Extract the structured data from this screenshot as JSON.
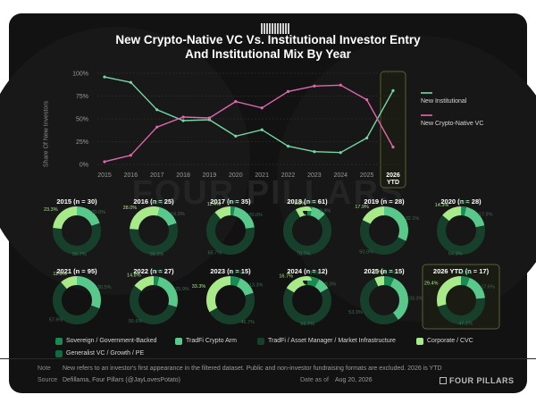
{
  "page": {
    "title_line1": "New Crypto-Native VC Vs. Institutional Investor Entry",
    "title_line2": "And Institutional Mix By Year",
    "watermark": "FOUR PILLARS",
    "brand": "FOUR PILLARS",
    "note_key": "Note",
    "note_text": "New refers to an investor's first appearance in the filtered dataset. Public and non-investor fundraising formats are excluded. 2026 is YTD",
    "source_key": "Source",
    "source_text": "Defillama, Four Pillars (@JayLovesPotato)",
    "date_key": "Date as of",
    "date_text": "Aug 20, 2026"
  },
  "colors": {
    "card_bg": "#121212",
    "institutional": "#74d7a4",
    "crypto_native": "#e066b0",
    "sovereign": "#1a8a52",
    "tradfi_crypto": "#58c98a",
    "tradfi_am": "#16402b",
    "corporate": "#a8ea8a",
    "generalist": "#0f6b40",
    "highlight_border": "#5b5f36"
  },
  "chart_data": [
    {
      "type": "line",
      "title": "New Crypto-Native VC Vs. Institutional Investor Entry And Institutional Mix By Year",
      "x": [
        "2015",
        "2016",
        "2017",
        "2018",
        "2019",
        "2020",
        "2021",
        "2022",
        "2023",
        "2024",
        "2025",
        "2026 YTD"
      ],
      "x_tick_lines": [
        [
          "2015"
        ],
        [
          "2016"
        ],
        [
          "2017"
        ],
        [
          "2018"
        ],
        [
          "2019"
        ],
        [
          "2020"
        ],
        [
          "2021"
        ],
        [
          "2022"
        ],
        [
          "2023"
        ],
        [
          "2024"
        ],
        [
          "2025"
        ],
        [
          "2026",
          "YTD"
        ]
      ],
      "ylabel": "Share Of New Investors",
      "yticks": [
        "0%",
        "25%",
        "50%",
        "75%",
        "100%"
      ],
      "ylim": [
        0,
        100
      ],
      "grid": true,
      "legend_position": "right",
      "series": [
        {
          "name": "New Institutional",
          "color": "#74d7a4",
          "values": [
            96,
            90,
            60,
            48,
            49,
            31,
            38,
            20,
            14,
            13,
            29,
            81
          ]
        },
        {
          "name": "New Crypto-Native VC",
          "color": "#e066b0",
          "values": [
            3,
            10,
            41,
            52,
            51,
            69,
            62,
            80,
            86,
            87,
            71,
            19
          ]
        }
      ],
      "highlight": "2026 YTD"
    },
    {
      "type": "pie",
      "subtype": "donut",
      "categories": [
        "Sovereign / Government-Backed",
        "TradFi Crypto Arm",
        "TradFi / Asset Manager / Market Infrastructure",
        "Corporate / CVC",
        "Generalist VC / Growth / PE"
      ],
      "legend_position": "bottom",
      "years": [
        {
          "label": "2015 (n = 30)",
          "slices": [
            0,
            20.0,
            56.7,
            23.3,
            0
          ],
          "labels": [
            "",
            "20.0%",
            "56.7%",
            "23.3%",
            ""
          ]
        },
        {
          "label": "2016 (n = 25)",
          "slices": [
            4.0,
            16.0,
            56.0,
            28.0,
            0
          ],
          "labels": [
            "4.0%",
            "16.0%",
            "56.0%",
            "28.0%",
            ""
          ]
        },
        {
          "label": "2017 (n = 35)",
          "slices": [
            2.9,
            20.0,
            65.7,
            11.4,
            0
          ],
          "labels": [
            "2.9%",
            "20.0%",
            "65.7%",
            "11.4%",
            ""
          ]
        },
        {
          "label": "2018 (n = 61)",
          "slices": [
            3.3,
            9.8,
            78.7,
            8.2,
            0
          ],
          "labels": [
            "3.3%",
            "9.8%",
            "78.7%",
            "8.2%",
            ""
          ]
        },
        {
          "label": "2019 (n = 28)",
          "slices": [
            0,
            32.1,
            50.0,
            17.9,
            0
          ],
          "labels": [
            "",
            "32.1%",
            "50.0%",
            "17.9%",
            ""
          ]
        },
        {
          "label": "2020 (n = 28)",
          "slices": [
            3.6,
            17.9,
            64.3,
            14.3,
            0
          ],
          "labels": [
            "3.6%",
            "17.9%",
            "64.3%",
            "14.3%",
            ""
          ]
        },
        {
          "label": "2021 (n = 95)",
          "slices": [
            0,
            30.5,
            57.9,
            11.6,
            0
          ],
          "labels": [
            "",
            "30.5%",
            "57.9%",
            "11.6%",
            ""
          ]
        },
        {
          "label": "2022 (n = 27)",
          "slices": [
            3.7,
            25.9,
            55.6,
            14.8,
            0
          ],
          "labels": [
            "3.7%",
            "25.9%",
            "55.6%",
            "14.8%",
            ""
          ]
        },
        {
          "label": "2023 (n = 15)",
          "slices": [
            6.7,
            13.3,
            46.7,
            33.3,
            0
          ],
          "labels": [
            "6.7%",
            "13.3%",
            "46.7%",
            "33.3%",
            ""
          ]
        },
        {
          "label": "2024 (n = 12)",
          "slices": [
            8.3,
            8.3,
            66.7,
            16.7,
            0
          ],
          "labels": [
            "8.3%",
            "8.3%",
            "66.7%",
            "16.7%",
            ""
          ]
        },
        {
          "label": "2025 (n = 15)",
          "slices": [
            6.7,
            33.3,
            53.3,
            6.7,
            0
          ],
          "labels": [
            "6.7%",
            "33.3%",
            "53.3%",
            "6.7%",
            ""
          ]
        },
        {
          "label": "2026 YTD (n = 17)",
          "slices": [
            5.9,
            17.6,
            47.1,
            29.4,
            0
          ],
          "labels": [
            "5.9%",
            "17.6%",
            "47.1%",
            "29.4%",
            ""
          ]
        }
      ]
    }
  ]
}
